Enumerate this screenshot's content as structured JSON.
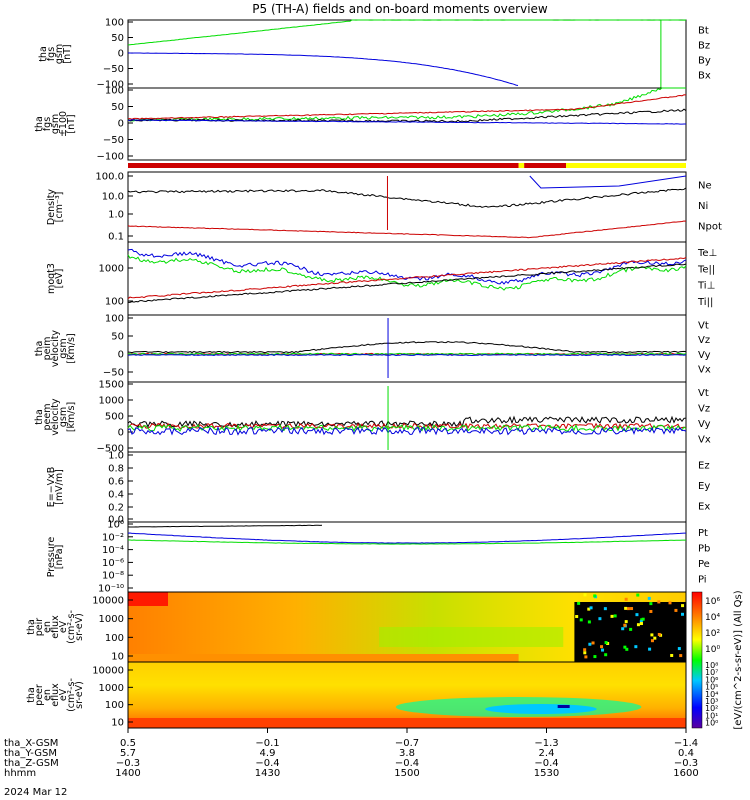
{
  "title": "P5 (TH-A) fields and on-board moments overview",
  "colors": {
    "black": "#000000",
    "red": "#cc0000",
    "green": "#00dd00",
    "blue": "#0000dd",
    "yellow": "#ffff00"
  },
  "chart_data": [
    {
      "type": "line",
      "id": "fgs-gsm",
      "ylabel": [
        "tha",
        "fgs",
        "gsm",
        "[nT]"
      ],
      "yticks": [
        "100",
        "50",
        "0",
        "−50",
        "−100"
      ],
      "ylim": [
        -100,
        100
      ],
      "legend": [
        "Bt",
        "Bz",
        "By",
        "Bx"
      ]
    },
    {
      "type": "line",
      "id": "fgs-gsm-clipped",
      "ylabel": [
        "tha",
        "fgs",
        "gsm",
        "±100",
        "[nT]"
      ],
      "yticks": [
        "100",
        "50",
        "0",
        "−50",
        "−100"
      ],
      "ylim": [
        -120,
        100
      ]
    },
    {
      "type": "line",
      "id": "density",
      "ylabel": [
        "Density",
        "[cm⁻³]"
      ],
      "yticks": [
        "100.0",
        "10.0",
        "1.0",
        "0.1"
      ],
      "ylim": [
        0.05,
        150
      ],
      "legend": [
        "Ne",
        "Ni",
        "Npot"
      ]
    },
    {
      "type": "line",
      "id": "temperature",
      "ylabel": [
        "moqt3",
        "[eV]"
      ],
      "yticks": [
        "1000",
        "100"
      ],
      "ylim": [
        80,
        4000
      ],
      "legend": [
        "Te⊥",
        "Te||",
        "Ti⊥",
        "Ti||"
      ]
    },
    {
      "type": "line",
      "id": "peim-velocity",
      "ylabel": [
        "tha",
        "peim",
        "velocity",
        "gsm",
        "[km/s]"
      ],
      "yticks": [
        "100",
        "50",
        "0",
        "−50"
      ],
      "ylim": [
        -75,
        100
      ],
      "legend": [
        "Vt",
        "Vz",
        "Vy",
        "Vx"
      ]
    },
    {
      "type": "line",
      "id": "peem-velocity",
      "ylabel": [
        "tha",
        "peem",
        "velocity",
        "gsm",
        "[km/s]"
      ],
      "yticks": [
        "1500",
        "1000",
        "500",
        "0",
        "−500"
      ],
      "ylim": [
        -800,
        1700
      ],
      "legend": [
        "Vt",
        "Vz",
        "Vy",
        "Vx"
      ]
    },
    {
      "type": "line",
      "id": "efield",
      "ylabel": [
        "E=−VxB",
        "[mV/m]"
      ],
      "yticks": [
        "1.0",
        "0.8",
        "0.6",
        "0.4",
        "0.2",
        "0.0"
      ],
      "ylim": [
        -0.05,
        1.0
      ],
      "legend": [
        "Ez",
        "Ey",
        "Ex"
      ]
    },
    {
      "type": "line",
      "id": "pressure",
      "ylabel": [
        "Pressure",
        "[nPa]"
      ],
      "yticks": [
        "10⁰",
        "10⁻²",
        "10⁻⁴",
        "10⁻⁶",
        "10⁻⁸",
        "10⁻¹⁰"
      ],
      "ylim": [
        -11,
        1
      ],
      "legend": [
        "Pt",
        "Pb",
        "Pe",
        "Pi"
      ]
    },
    {
      "type": "heatmap",
      "id": "peir-en-eflux",
      "ylabel": [
        "tha",
        "peir",
        "en",
        "eflux",
        "eV",
        "(cm²-s-",
        "sr-eV)"
      ],
      "yticks": [
        "10000",
        "1000",
        "100",
        "10"
      ]
    },
    {
      "type": "heatmap",
      "id": "peer-en-eflux",
      "ylabel": [
        "tha",
        "peer",
        "en",
        "eflux",
        "eV",
        "(cm²-s-",
        "sr-eV)"
      ],
      "yticks": [
        "10000",
        "1000",
        "100",
        "10"
      ]
    }
  ],
  "colorbar": {
    "ticks_top": [
      "10⁶",
      "10⁴",
      "10²",
      "10⁰"
    ],
    "ticks_bottom": [
      "10⁸",
      "10⁷",
      "10⁶",
      "10⁵",
      "10⁴",
      "10³",
      "10²",
      "10¹",
      "10⁰"
    ],
    "label": "[eV/(cm^2-s-sr-eV)] (All Qs)"
  },
  "xaxis": {
    "rows": [
      {
        "label": "tha_X-GSM",
        "values": [
          "0.5",
          "−0.1",
          "−0.7",
          "−1.3",
          "−1.4"
        ]
      },
      {
        "label": "tha_Y-GSM",
        "values": [
          "5.7",
          "4.9",
          "3.8",
          "2.4",
          "0.4"
        ]
      },
      {
        "label": "tha_Z-GSM",
        "values": [
          "−0.3",
          "−0.4",
          "−0.4",
          "−0.4",
          "−0.3"
        ]
      },
      {
        "label": "hhmm",
        "values": [
          "1400",
          "1430",
          "1500",
          "1530",
          "1600"
        ]
      }
    ],
    "date": "2024 Mar 12"
  }
}
